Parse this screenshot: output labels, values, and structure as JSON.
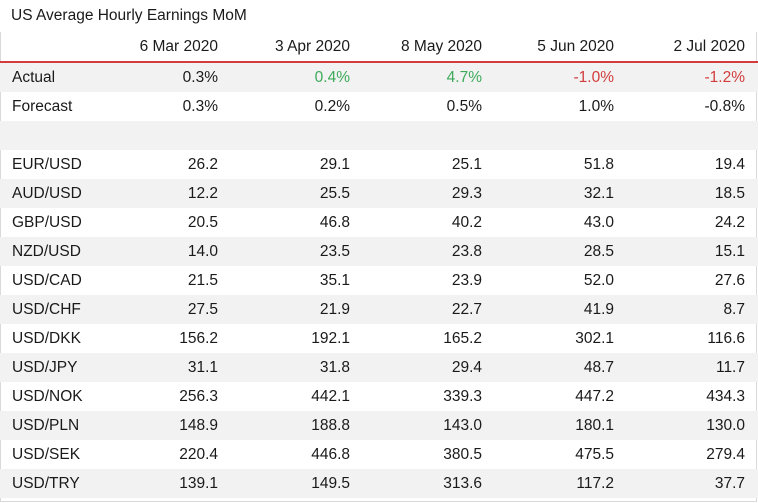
{
  "title": "US Average Hourly Earnings MoM",
  "columns": [
    "6 Mar 2020",
    "3 Apr 2020",
    "8 May 2020",
    "5 Jun 2020",
    "2 Jul 2020"
  ],
  "rows": [
    {
      "label": "Actual",
      "cells": [
        {
          "v": "0.3%",
          "s": ""
        },
        {
          "v": "0.4%",
          "s": "pos"
        },
        {
          "v": "4.7%",
          "s": "pos"
        },
        {
          "v": "-1.0%",
          "s": "neg"
        },
        {
          "v": "-1.2%",
          "s": "neg"
        }
      ]
    },
    {
      "label": "Forecast",
      "cells": [
        {
          "v": "0.3%",
          "s": ""
        },
        {
          "v": "0.2%",
          "s": ""
        },
        {
          "v": "0.5%",
          "s": ""
        },
        {
          "v": "1.0%",
          "s": ""
        },
        {
          "v": "-0.8%",
          "s": ""
        }
      ]
    },
    {
      "label": "",
      "cells": [
        {
          "v": "",
          "s": ""
        },
        {
          "v": "",
          "s": ""
        },
        {
          "v": "",
          "s": ""
        },
        {
          "v": "",
          "s": ""
        },
        {
          "v": "",
          "s": ""
        }
      ]
    },
    {
      "label": "EUR/USD",
      "cells": [
        {
          "v": "26.2",
          "s": ""
        },
        {
          "v": "29.1",
          "s": ""
        },
        {
          "v": "25.1",
          "s": ""
        },
        {
          "v": "51.8",
          "s": ""
        },
        {
          "v": "19.4",
          "s": ""
        }
      ]
    },
    {
      "label": "AUD/USD",
      "cells": [
        {
          "v": "12.2",
          "s": ""
        },
        {
          "v": "25.5",
          "s": ""
        },
        {
          "v": "29.3",
          "s": ""
        },
        {
          "v": "32.1",
          "s": ""
        },
        {
          "v": "18.5",
          "s": ""
        }
      ]
    },
    {
      "label": "GBP/USD",
      "cells": [
        {
          "v": "20.5",
          "s": ""
        },
        {
          "v": "46.8",
          "s": ""
        },
        {
          "v": "40.2",
          "s": ""
        },
        {
          "v": "43.0",
          "s": ""
        },
        {
          "v": "24.2",
          "s": ""
        }
      ]
    },
    {
      "label": "NZD/USD",
      "cells": [
        {
          "v": "14.0",
          "s": ""
        },
        {
          "v": "23.5",
          "s": ""
        },
        {
          "v": "23.8",
          "s": ""
        },
        {
          "v": "28.5",
          "s": ""
        },
        {
          "v": "15.1",
          "s": ""
        }
      ]
    },
    {
      "label": "USD/CAD",
      "cells": [
        {
          "v": "21.5",
          "s": ""
        },
        {
          "v": "35.1",
          "s": ""
        },
        {
          "v": "23.9",
          "s": ""
        },
        {
          "v": "52.0",
          "s": ""
        },
        {
          "v": "27.6",
          "s": ""
        }
      ]
    },
    {
      "label": "USD/CHF",
      "cells": [
        {
          "v": "27.5",
          "s": ""
        },
        {
          "v": "21.9",
          "s": ""
        },
        {
          "v": "22.7",
          "s": ""
        },
        {
          "v": "41.9",
          "s": ""
        },
        {
          "v": "8.7",
          "s": ""
        }
      ]
    },
    {
      "label": "USD/DKK",
      "cells": [
        {
          "v": "156.2",
          "s": ""
        },
        {
          "v": "192.1",
          "s": ""
        },
        {
          "v": "165.2",
          "s": ""
        },
        {
          "v": "302.1",
          "s": ""
        },
        {
          "v": "116.6",
          "s": ""
        }
      ]
    },
    {
      "label": "USD/JPY",
      "cells": [
        {
          "v": "31.1",
          "s": ""
        },
        {
          "v": "31.8",
          "s": ""
        },
        {
          "v": "29.4",
          "s": ""
        },
        {
          "v": "48.7",
          "s": ""
        },
        {
          "v": "11.7",
          "s": ""
        }
      ]
    },
    {
      "label": "USD/NOK",
      "cells": [
        {
          "v": "256.3",
          "s": ""
        },
        {
          "v": "442.1",
          "s": ""
        },
        {
          "v": "339.3",
          "s": ""
        },
        {
          "v": "447.2",
          "s": ""
        },
        {
          "v": "434.3",
          "s": ""
        }
      ]
    },
    {
      "label": "USD/PLN",
      "cells": [
        {
          "v": "148.9",
          "s": ""
        },
        {
          "v": "188.8",
          "s": ""
        },
        {
          "v": "143.0",
          "s": ""
        },
        {
          "v": "180.1",
          "s": ""
        },
        {
          "v": "130.0",
          "s": ""
        }
      ]
    },
    {
      "label": "USD/SEK",
      "cells": [
        {
          "v": "220.4",
          "s": ""
        },
        {
          "v": "446.8",
          "s": ""
        },
        {
          "v": "380.5",
          "s": ""
        },
        {
          "v": "475.5",
          "s": ""
        },
        {
          "v": "279.4",
          "s": ""
        }
      ]
    },
    {
      "label": "USD/TRY",
      "cells": [
        {
          "v": "139.1",
          "s": ""
        },
        {
          "v": "149.5",
          "s": ""
        },
        {
          "v": "313.6",
          "s": ""
        },
        {
          "v": "117.2",
          "s": ""
        },
        {
          "v": "37.7",
          "s": ""
        }
      ]
    }
  ]
}
